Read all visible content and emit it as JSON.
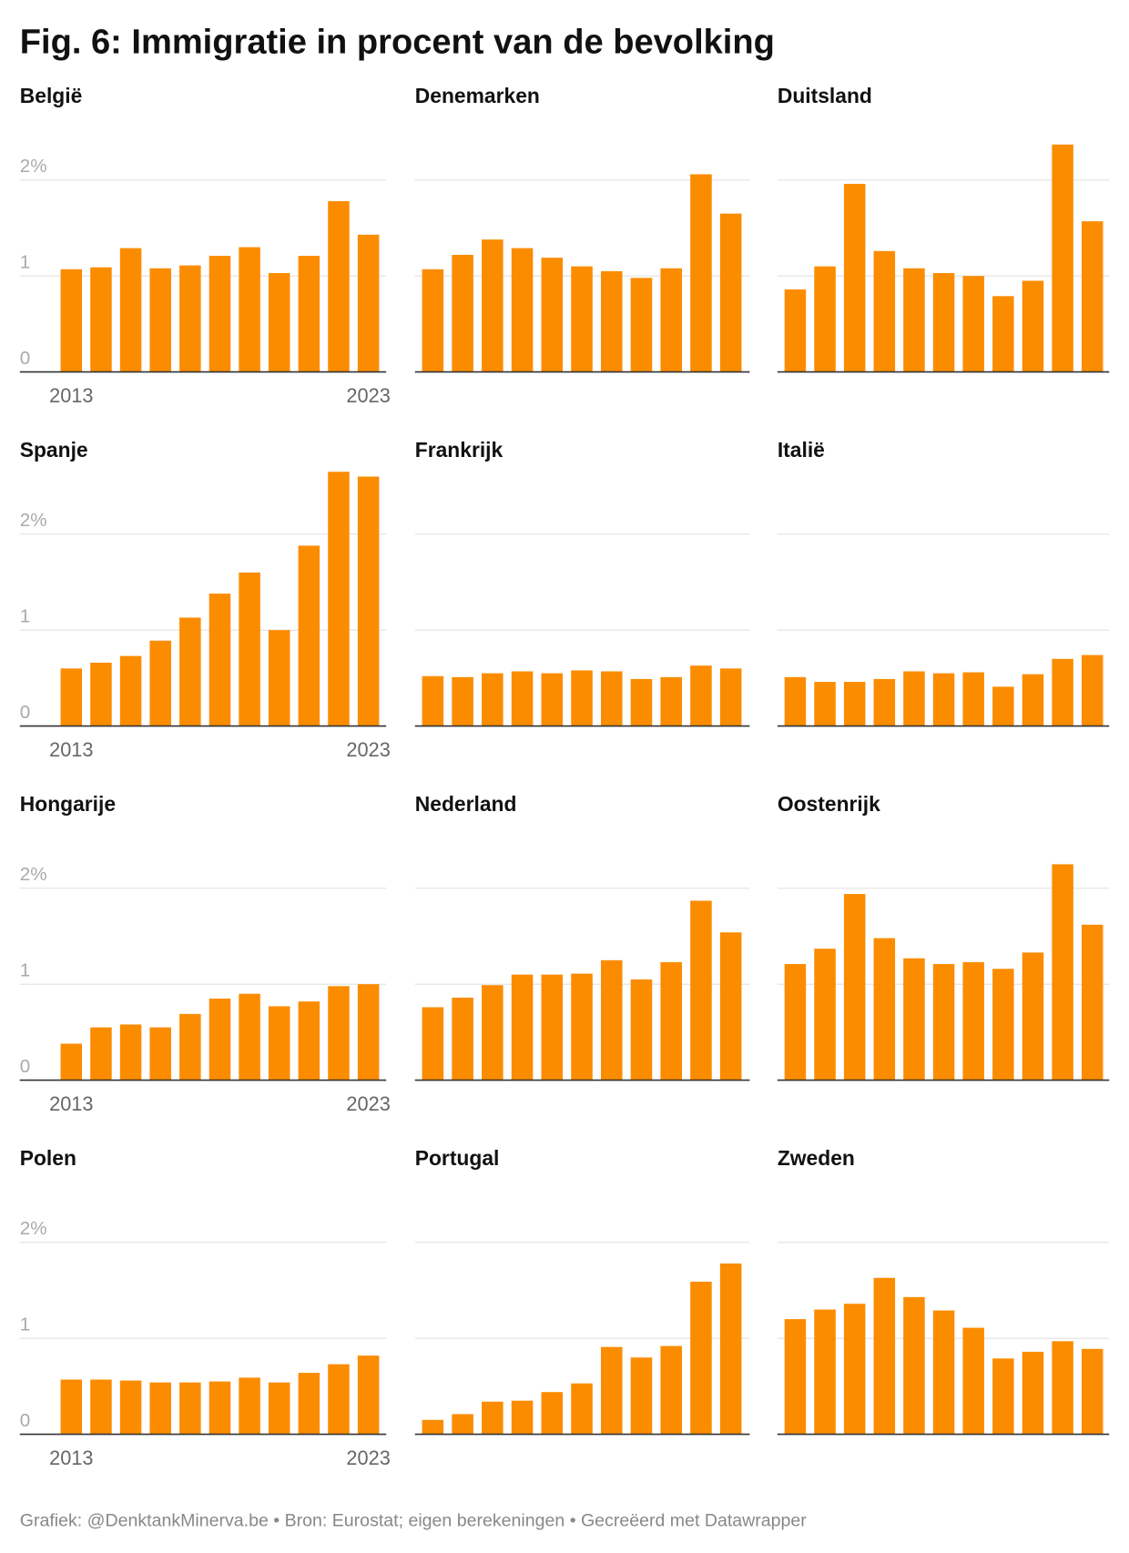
{
  "title": "Fig. 6: Immigratie in procent van de bevolking",
  "footer": "Grafiek: @DenktankMinerva.be • Bron: Eurostat; eigen berekeningen • Gecreëerd met Datawrapper",
  "chart_data": [
    {
      "type": "bar",
      "title": "België",
      "color": "#fb8c00",
      "tick_labels": true,
      "categories": [
        "2013",
        null,
        null,
        null,
        null,
        null,
        null,
        null,
        null,
        null,
        "2023"
      ],
      "values": [
        1.07,
        1.09,
        1.29,
        1.08,
        1.11,
        1.21,
        1.3,
        1.03,
        1.21,
        1.78,
        1.43
      ],
      "ylim": [
        0,
        2.7
      ],
      "yticks": [
        0,
        1,
        {
          "value": 2,
          "label": "2%"
        }
      ],
      "grid": true
    },
    {
      "type": "bar",
      "title": "Denemarken",
      "color": "#fb8c00",
      "tick_labels": false,
      "categories": [
        null,
        null,
        null,
        null,
        null,
        null,
        null,
        null,
        null,
        null,
        null
      ],
      "values": [
        1.07,
        1.22,
        1.38,
        1.29,
        1.19,
        1.1,
        1.05,
        0.98,
        1.08,
        2.06,
        1.65
      ],
      "ylim": [
        0,
        2.7
      ],
      "yticks": [
        0,
        1,
        2
      ],
      "grid": true
    },
    {
      "type": "bar",
      "title": "Duitsland",
      "color": "#fb8c00",
      "tick_labels": false,
      "categories": [
        null,
        null,
        null,
        null,
        null,
        null,
        null,
        null,
        null,
        null,
        null
      ],
      "values": [
        0.86,
        1.1,
        1.96,
        1.26,
        1.08,
        1.03,
        1.0,
        0.79,
        0.95,
        2.37,
        1.57
      ],
      "ylim": [
        0,
        2.7
      ],
      "yticks": [
        0,
        1,
        2
      ],
      "grid": true
    },
    {
      "type": "bar",
      "title": "Spanje",
      "color": "#fb8c00",
      "tick_labels": true,
      "categories": [
        "2013",
        null,
        null,
        null,
        null,
        null,
        null,
        null,
        null,
        null,
        "2023"
      ],
      "values": [
        0.6,
        0.66,
        0.73,
        0.89,
        1.13,
        1.38,
        1.6,
        1.0,
        1.88,
        2.65,
        2.6
      ],
      "ylim": [
        0,
        2.7
      ],
      "yticks": [
        0,
        1,
        {
          "value": 2,
          "label": "2%"
        }
      ],
      "grid": true
    },
    {
      "type": "bar",
      "title": "Frankrijk",
      "color": "#fb8c00",
      "tick_labels": false,
      "categories": [
        null,
        null,
        null,
        null,
        null,
        null,
        null,
        null,
        null,
        null,
        null
      ],
      "values": [
        0.52,
        0.51,
        0.55,
        0.57,
        0.55,
        0.58,
        0.57,
        0.49,
        0.51,
        0.63,
        0.6
      ],
      "ylim": [
        0,
        2.7
      ],
      "yticks": [
        0,
        1,
        2
      ],
      "grid": true
    },
    {
      "type": "bar",
      "title": "Italië",
      "color": "#fb8c00",
      "tick_labels": false,
      "categories": [
        null,
        null,
        null,
        null,
        null,
        null,
        null,
        null,
        null,
        null,
        null
      ],
      "values": [
        0.51,
        0.46,
        0.46,
        0.49,
        0.57,
        0.55,
        0.56,
        0.41,
        0.54,
        0.7,
        0.74
      ],
      "ylim": [
        0,
        2.7
      ],
      "yticks": [
        0,
        1,
        2
      ],
      "grid": true
    },
    {
      "type": "bar",
      "title": "Hongarije",
      "color": "#fb8c00",
      "tick_labels": true,
      "categories": [
        "2013",
        null,
        null,
        null,
        null,
        null,
        null,
        null,
        null,
        null,
        "2023"
      ],
      "values": [
        0.38,
        0.55,
        0.58,
        0.55,
        0.69,
        0.85,
        0.9,
        0.77,
        0.82,
        0.98,
        1.0
      ],
      "ylim": [
        0,
        2.7
      ],
      "yticks": [
        0,
        1,
        {
          "value": 2,
          "label": "2%"
        }
      ],
      "grid": true
    },
    {
      "type": "bar",
      "title": "Nederland",
      "color": "#fb8c00",
      "tick_labels": false,
      "categories": [
        null,
        null,
        null,
        null,
        null,
        null,
        null,
        null,
        null,
        null,
        null
      ],
      "values": [
        0.76,
        0.86,
        0.99,
        1.1,
        1.1,
        1.11,
        1.25,
        1.05,
        1.23,
        1.87,
        1.54
      ],
      "ylim": [
        0,
        2.7
      ],
      "yticks": [
        0,
        1,
        2
      ],
      "grid": true
    },
    {
      "type": "bar",
      "title": "Oostenrijk",
      "color": "#fb8c00",
      "tick_labels": false,
      "categories": [
        null,
        null,
        null,
        null,
        null,
        null,
        null,
        null,
        null,
        null,
        null
      ],
      "values": [
        1.21,
        1.37,
        1.94,
        1.48,
        1.27,
        1.21,
        1.23,
        1.16,
        1.33,
        2.25,
        1.62
      ],
      "ylim": [
        0,
        2.7
      ],
      "yticks": [
        0,
        1,
        2
      ],
      "grid": true
    },
    {
      "type": "bar",
      "title": "Polen",
      "color": "#fb8c00",
      "tick_labels": true,
      "categories": [
        "2013",
        null,
        null,
        null,
        null,
        null,
        null,
        null,
        null,
        null,
        "2023"
      ],
      "values": [
        0.57,
        0.57,
        0.56,
        0.54,
        0.54,
        0.55,
        0.59,
        0.54,
        0.64,
        0.73,
        0.82
      ],
      "ylim": [
        0,
        2.7
      ],
      "yticks": [
        0,
        1,
        {
          "value": 2,
          "label": "2%"
        }
      ],
      "grid": true
    },
    {
      "type": "bar",
      "title": "Portugal",
      "color": "#fb8c00",
      "tick_labels": false,
      "categories": [
        null,
        null,
        null,
        null,
        null,
        null,
        null,
        null,
        null,
        null,
        null
      ],
      "values": [
        0.15,
        0.21,
        0.34,
        0.35,
        0.44,
        0.53,
        0.91,
        0.8,
        0.92,
        1.59,
        1.78
      ],
      "ylim": [
        0,
        2.7
      ],
      "yticks": [
        0,
        1,
        2
      ],
      "grid": true
    },
    {
      "type": "bar",
      "title": "Zweden",
      "color": "#fb8c00",
      "tick_labels": false,
      "categories": [
        null,
        null,
        null,
        null,
        null,
        null,
        null,
        null,
        null,
        null,
        null
      ],
      "values": [
        1.2,
        1.3,
        1.36,
        1.63,
        1.43,
        1.29,
        1.11,
        0.79,
        0.86,
        0.97,
        0.89
      ],
      "ylim": [
        0,
        2.7
      ],
      "yticks": [
        0,
        1,
        2
      ],
      "grid": true
    }
  ]
}
